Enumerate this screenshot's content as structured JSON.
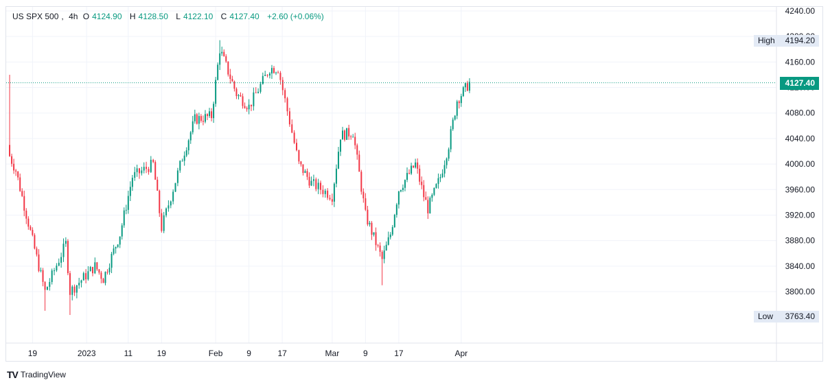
{
  "header": {
    "symbol": "US SPX 500",
    "interval": "4h",
    "open_label": "O",
    "open": "4124.90",
    "high_label": "H",
    "high": "4128.50",
    "low_label": "L",
    "low": "4122.10",
    "close_label": "C",
    "close": "4127.40",
    "change": "+2.60 (+0.06%)"
  },
  "price_axis": {
    "ticks": [
      "4240.00",
      "4200.00",
      "4160.00",
      "4120.00",
      "4080.00",
      "4040.00",
      "4000.00",
      "3960.00",
      "3920.00",
      "3880.00",
      "3840.00",
      "3800.00"
    ],
    "high_label": "High",
    "high_value": "4194.20",
    "low_label": "Low",
    "low_value": "3763.40",
    "last_price": "4127.40"
  },
  "time_axis": {
    "labels": [
      "19",
      "2023",
      "11",
      "19",
      "Feb",
      "9",
      "17",
      "Mar",
      "9",
      "17",
      "Apr"
    ]
  },
  "footer": {
    "logo_text": "TV",
    "brand": "TradingView"
  },
  "colors": {
    "up": "#089981",
    "down": "#f23645",
    "grid": "#f0f3fa",
    "price_line": "#089981"
  },
  "chart_data": {
    "type": "candlestick",
    "symbol": "US SPX 500",
    "interval": "4h",
    "ylim": [
      3760,
      4245
    ],
    "grid": true,
    "key_points": [
      {
        "x": "2022-12-13",
        "close": 4020,
        "high": 4140
      },
      {
        "x": "2022-12-15",
        "close": 3990
      },
      {
        "x": "2022-12-19",
        "close": 3880
      },
      {
        "x": "2022-12-22",
        "close": 3800,
        "low": 3770
      },
      {
        "x": "2022-12-27",
        "close": 3875
      },
      {
        "x": "2022-12-28",
        "close": 3800,
        "low": 3763.4
      },
      {
        "x": "2023-01-03",
        "close": 3840
      },
      {
        "x": "2023-01-05",
        "close": 3820
      },
      {
        "x": "2023-01-09",
        "close": 3890
      },
      {
        "x": "2023-01-12",
        "close": 3980
      },
      {
        "x": "2023-01-17",
        "close": 4000
      },
      {
        "x": "2023-01-19",
        "close": 3900
      },
      {
        "x": "2023-01-24",
        "close": 4010
      },
      {
        "x": "2023-01-27",
        "close": 4070
      },
      {
        "x": "2023-01-31",
        "close": 4075
      },
      {
        "x": "2023-02-02",
        "close": 4180,
        "high": 4194.2
      },
      {
        "x": "2023-02-06",
        "close": 4110
      },
      {
        "x": "2023-02-09",
        "close": 4090
      },
      {
        "x": "2023-02-14",
        "close": 4150
      },
      {
        "x": "2023-02-16",
        "close": 4150
      },
      {
        "x": "2023-02-21",
        "close": 4000
      },
      {
        "x": "2023-02-24",
        "close": 3970
      },
      {
        "x": "2023-03-01",
        "close": 3950
      },
      {
        "x": "2023-03-03",
        "close": 4045
      },
      {
        "x": "2023-03-06",
        "close": 4050
      },
      {
        "x": "2023-03-09",
        "close": 3920
      },
      {
        "x": "2023-03-13",
        "close": 3850,
        "low": 3810
      },
      {
        "x": "2023-03-15",
        "close": 3890
      },
      {
        "x": "2023-03-17",
        "close": 3960
      },
      {
        "x": "2023-03-21",
        "close": 4000
      },
      {
        "x": "2023-03-23",
        "close": 3950
      },
      {
        "x": "2023-03-24",
        "close": 3930
      },
      {
        "x": "2023-03-27",
        "close": 3980
      },
      {
        "x": "2023-03-29",
        "close": 4030
      },
      {
        "x": "2023-03-31",
        "close": 4100
      },
      {
        "x": "2023-04-03",
        "close": 4127.4
      }
    ]
  }
}
